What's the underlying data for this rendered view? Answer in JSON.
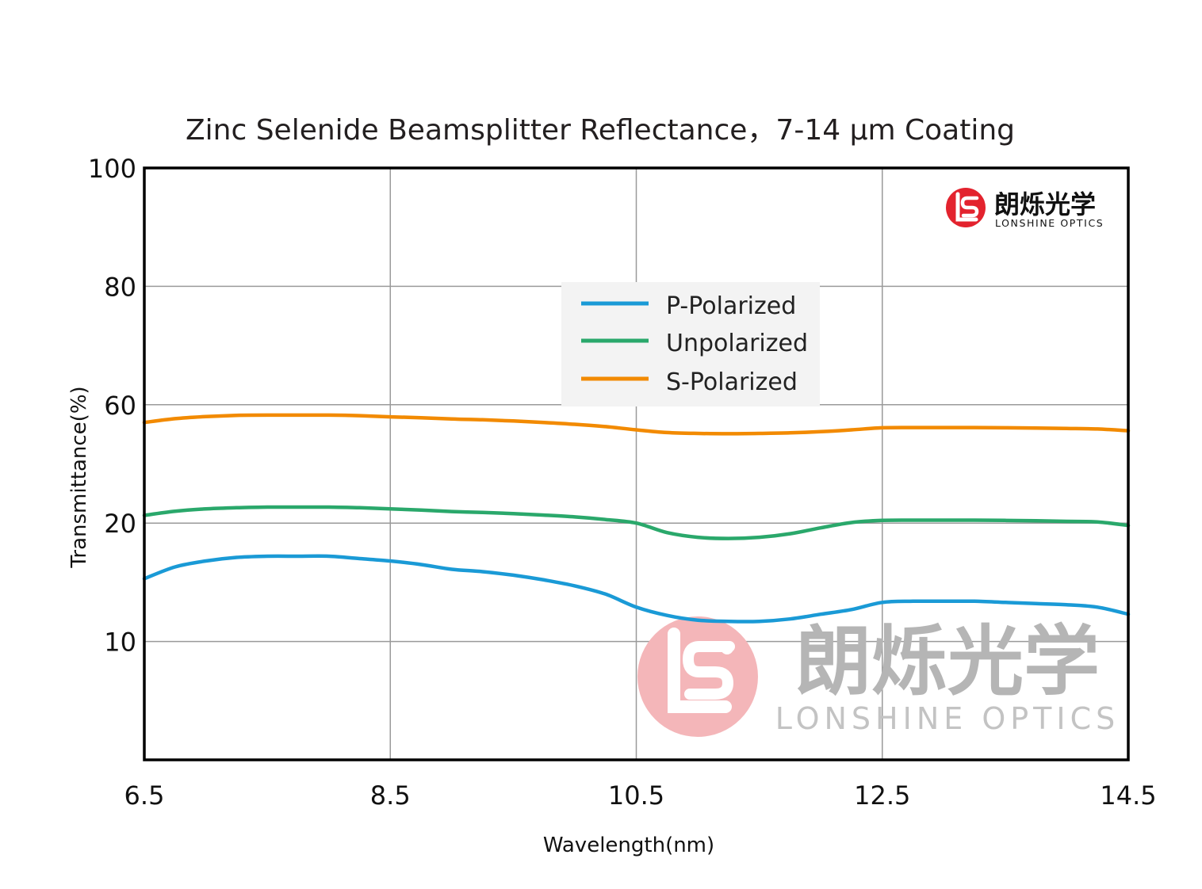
{
  "chart_data": {
    "type": "line",
    "title": "Zinc Selenide Beamsplitter Reflectance，7-14 μm Coating",
    "xlabel": "Wavelength(nm)",
    "ylabel": "Transmittance(%)",
    "xlim": [
      6.5,
      14.5
    ],
    "x_ticks": [
      "6.5",
      "8.5",
      "10.5",
      "12.5",
      "14.5"
    ],
    "x_tick_values": [
      6.5,
      8.5,
      10.5,
      12.5,
      14.5
    ],
    "y_ticks": [
      "10",
      "20",
      "60",
      "80",
      "100"
    ],
    "grid": true,
    "legend_position": "top-center",
    "x": [
      6.5,
      6.75,
      7.0,
      7.25,
      7.5,
      7.75,
      8.0,
      8.25,
      8.5,
      8.75,
      9.0,
      9.25,
      9.5,
      9.75,
      10.0,
      10.25,
      10.5,
      10.75,
      11.0,
      11.25,
      11.5,
      11.75,
      12.0,
      12.25,
      12.5,
      12.75,
      13.0,
      13.25,
      13.5,
      13.75,
      14.0,
      14.25,
      14.5
    ],
    "series": [
      {
        "name": "P-Polarized",
        "color": "#1a9ad6",
        "values": [
          15.3,
          16.3,
          16.8,
          17.1,
          17.2,
          17.2,
          17.2,
          17.0,
          16.8,
          16.5,
          16.1,
          15.9,
          15.6,
          15.2,
          14.7,
          14.0,
          12.9,
          12.2,
          11.8,
          11.7,
          11.7,
          11.9,
          12.3,
          12.7,
          13.3,
          13.4,
          13.4,
          13.4,
          13.3,
          13.2,
          13.1,
          12.9,
          12.3
        ]
      },
      {
        "name": "Unpolarized",
        "color": "#2aa86b",
        "values": [
          22.6,
          24.0,
          24.8,
          25.2,
          25.4,
          25.4,
          25.4,
          25.2,
          24.8,
          24.4,
          23.9,
          23.6,
          23.2,
          22.7,
          22.1,
          21.2,
          20.0,
          19.2,
          18.8,
          18.7,
          18.8,
          19.1,
          19.6,
          20.2,
          20.9,
          21.0,
          21.0,
          21.0,
          20.9,
          20.8,
          20.6,
          20.4,
          19.8
        ]
      },
      {
        "name": "S-Polarized",
        "color": "#f28a00",
        "values": [
          54.0,
          55.3,
          56.0,
          56.4,
          56.5,
          56.5,
          56.5,
          56.3,
          55.9,
          55.6,
          55.2,
          54.9,
          54.5,
          54.0,
          53.4,
          52.6,
          51.5,
          50.6,
          50.3,
          50.2,
          50.3,
          50.5,
          50.9,
          51.5,
          52.2,
          52.3,
          52.3,
          52.3,
          52.2,
          52.1,
          52.0,
          51.8,
          51.2
        ]
      }
    ]
  },
  "logo": {
    "name_cn": "朗烁光学",
    "name_en": "LONSHINE OPTICS",
    "mark_color": "#e3232e"
  },
  "watermark": {
    "name_cn": "朗烁光学",
    "name_en": "LONSHINE OPTICS"
  }
}
